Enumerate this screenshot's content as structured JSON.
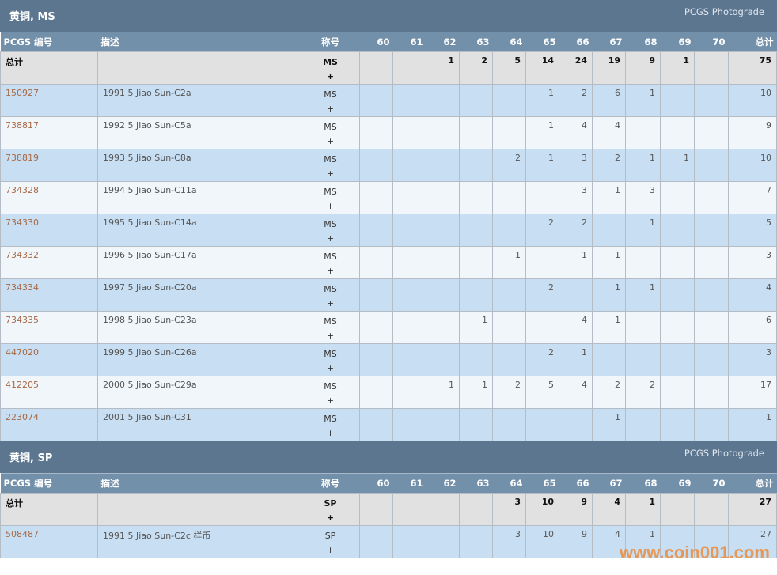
{
  "grades": [
    "60",
    "61",
    "62",
    "63",
    "64",
    "65",
    "66",
    "67",
    "68",
    "69",
    "70"
  ],
  "columns": {
    "pcgs": "PCGS 编号",
    "desc": "描述",
    "designation": "称号",
    "total": "总计"
  },
  "sections": [
    {
      "title": "黄铜, MS",
      "photograde": "PCGS Photograde",
      "total_row": {
        "label": "总计",
        "designation": "MS",
        "plus": "+",
        "values": [
          "",
          "",
          "1",
          "2",
          "5",
          "14",
          "24",
          "19",
          "9",
          "1",
          ""
        ],
        "total": "75"
      },
      "rows": [
        {
          "id": "150927",
          "desc": "1991 5 Jiao Sun-C2a",
          "designation": "MS",
          "plus": "+",
          "values": [
            "",
            "",
            "",
            "",
            "",
            "1",
            "2",
            "6",
            "1",
            "",
            ""
          ],
          "total": "10"
        },
        {
          "id": "738817",
          "desc": "1992 5 Jiao Sun-C5a",
          "designation": "MS",
          "plus": "+",
          "values": [
            "",
            "",
            "",
            "",
            "",
            "1",
            "4",
            "4",
            "",
            "",
            ""
          ],
          "total": "9"
        },
        {
          "id": "738819",
          "desc": "1993 5 Jiao Sun-C8a",
          "designation": "MS",
          "plus": "+",
          "values": [
            "",
            "",
            "",
            "",
            "2",
            "1",
            "3",
            "2",
            "1",
            "1",
            ""
          ],
          "total": "10"
        },
        {
          "id": "734328",
          "desc": "1994 5 Jiao Sun-C11a",
          "designation": "MS",
          "plus": "+",
          "values": [
            "",
            "",
            "",
            "",
            "",
            "",
            "3",
            "1",
            "3",
            "",
            ""
          ],
          "total": "7"
        },
        {
          "id": "734330",
          "desc": "1995 5 Jiao Sun-C14a",
          "designation": "MS",
          "plus": "+",
          "values": [
            "",
            "",
            "",
            "",
            "",
            "2",
            "2",
            "",
            "1",
            "",
            ""
          ],
          "total": "5"
        },
        {
          "id": "734332",
          "desc": "1996 5 Jiao Sun-C17a",
          "designation": "MS",
          "plus": "+",
          "values": [
            "",
            "",
            "",
            "",
            "1",
            "",
            "1",
            "1",
            "",
            "",
            ""
          ],
          "total": "3"
        },
        {
          "id": "734334",
          "desc": "1997 5 Jiao Sun-C20a",
          "designation": "MS",
          "plus": "+",
          "values": [
            "",
            "",
            "",
            "",
            "",
            "2",
            "",
            "1",
            "1",
            "",
            ""
          ],
          "total": "4"
        },
        {
          "id": "734335",
          "desc": "1998 5 Jiao Sun-C23a",
          "designation": "MS",
          "plus": "+",
          "values": [
            "",
            "",
            "",
            "1",
            "",
            "",
            "4",
            "1",
            "",
            "",
            ""
          ],
          "total": "6"
        },
        {
          "id": "447020",
          "desc": "1999 5 Jiao Sun-C26a",
          "designation": "MS",
          "plus": "+",
          "values": [
            "",
            "",
            "",
            "",
            "",
            "2",
            "1",
            "",
            "",
            "",
            ""
          ],
          "total": "3"
        },
        {
          "id": "412205",
          "desc": "2000 5 Jiao Sun-C29a",
          "designation": "MS",
          "plus": "+",
          "values": [
            "",
            "",
            "1",
            "1",
            "2",
            "5",
            "4",
            "2",
            "2",
            "",
            ""
          ],
          "total": "17"
        },
        {
          "id": "223074",
          "desc": "2001 5 Jiao Sun-C31",
          "designation": "MS",
          "plus": "+",
          "values": [
            "",
            "",
            "",
            "",
            "",
            "",
            "",
            "1",
            "",
            "",
            ""
          ],
          "total": "1"
        }
      ]
    },
    {
      "title": "黄铜, SP",
      "photograde": "PCGS Photograde",
      "total_row": {
        "label": "总计",
        "designation": "SP",
        "plus": "+",
        "values": [
          "",
          "",
          "",
          "",
          "3",
          "10",
          "9",
          "4",
          "1",
          "",
          ""
        ],
        "total": "27"
      },
      "rows": [
        {
          "id": "508487",
          "desc": "1991 5 Jiao Sun-C2c 样币",
          "designation": "SP",
          "plus": "+",
          "values": [
            "",
            "",
            "",
            "",
            "3",
            "10",
            "9",
            "4",
            "1",
            "",
            ""
          ],
          "total": "27"
        }
      ]
    }
  ],
  "watermark": "www.coin001.com"
}
